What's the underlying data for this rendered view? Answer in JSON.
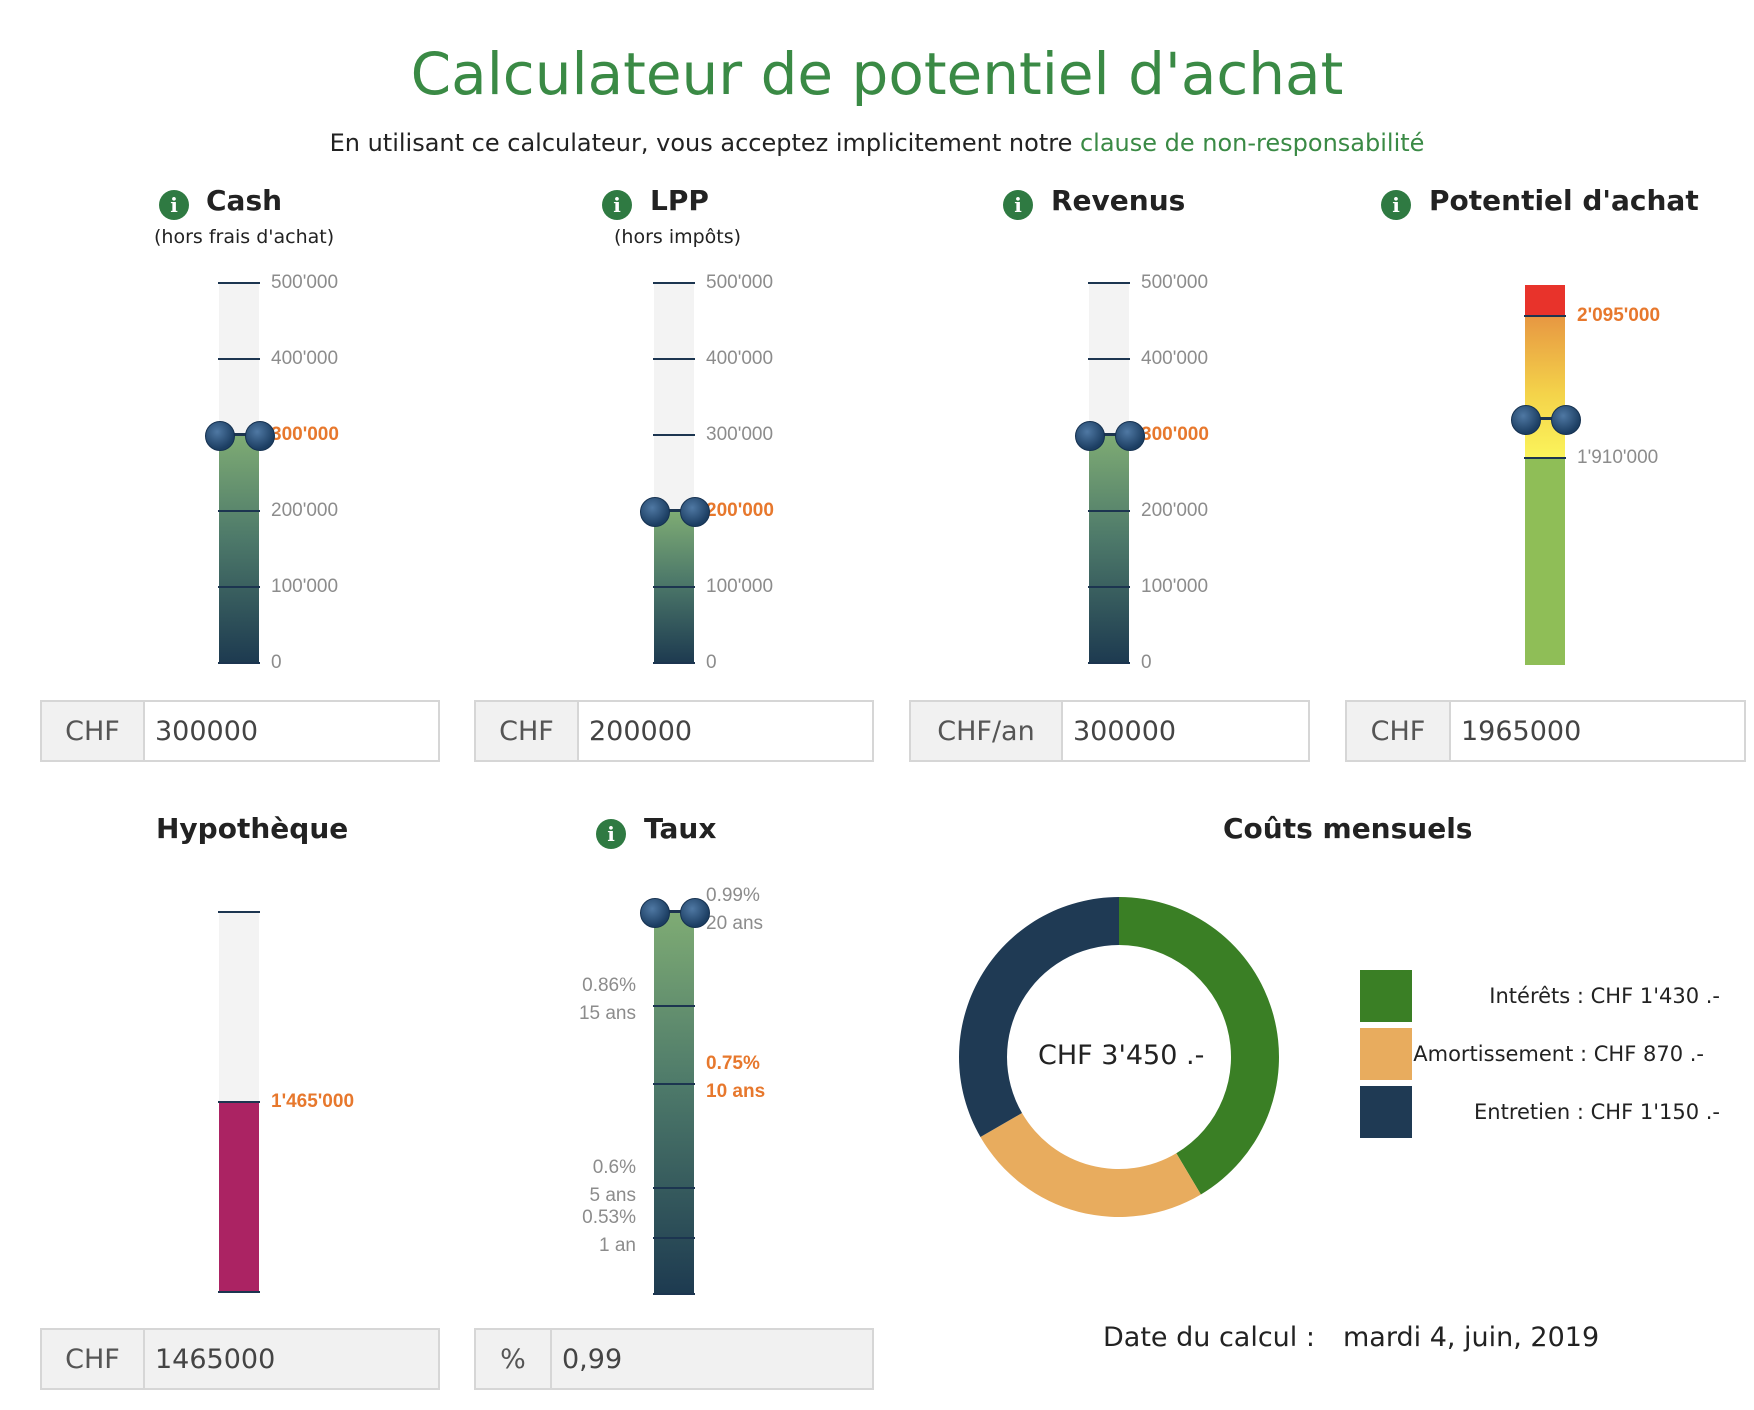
{
  "header": {
    "title": "Calculateur de potentiel d'achat",
    "disclaimer_text": "En utilisant ce calculateur, vous acceptez implicitement notre",
    "disclaimer_link": "clause de non-responsabilité"
  },
  "icons": {
    "info": "info-icon"
  },
  "cash": {
    "title": "Cash",
    "subtitle": "(hors frais d'achat)",
    "ticks": [
      "500'000",
      "400'000",
      "300'000",
      "200'000",
      "100'000",
      "0"
    ],
    "value_fraction": 0.6,
    "input_unit": "CHF",
    "input_value": "300000"
  },
  "lpp": {
    "title": "LPP",
    "subtitle": "(hors impôts)",
    "ticks": [
      "500'000",
      "400'000",
      "300'000",
      "200'000",
      "100'000",
      "0"
    ],
    "value_fraction": 0.4,
    "input_unit": "CHF",
    "input_value": "200000"
  },
  "revenus": {
    "title": "Revenus",
    "ticks": [
      "500'000",
      "400'000",
      "300'000",
      "200'000",
      "100'000",
      "0"
    ],
    "value_fraction": 0.6,
    "input_unit": "CHF/an",
    "input_value": "300000"
  },
  "potentiel": {
    "title": "Potentiel d'achat",
    "upper_label": "2'095'000",
    "lower_label": "1'910'000",
    "input_unit": "CHF",
    "input_value": "1965000"
  },
  "hypotheque": {
    "title": "Hypothèque",
    "value_label": "1'465'000",
    "input_unit": "CHF",
    "input_value": "1465000"
  },
  "taux": {
    "title": "Taux",
    "labels": {
      "t20_rate": "0.99%",
      "t20_term": "20 ans",
      "t15_rate": "0.86%",
      "t15_term": "15 ans",
      "t10_rate": "0.75%",
      "t10_term": "10 ans",
      "t5_rate": "0.6%",
      "t5_term": "5 ans",
      "t1_rate": "0.53%",
      "t1_term": "1 an"
    },
    "input_unit": "%",
    "input_value": "0,99"
  },
  "couts": {
    "title": "Coûts mensuels",
    "center_label": "CHF 3'450 .-",
    "chart_data": {
      "type": "pie",
      "title": "Coûts mensuels",
      "slices": [
        {
          "label": "Intérêts : CHF 1'430 .-",
          "value": 1430,
          "color": "#3a7f25"
        },
        {
          "label": "Amortissement : CHF 870 .-",
          "value": 870,
          "color": "#e8ac5e"
        },
        {
          "label": "Entretien : CHF 1'150 .-",
          "value": 1150,
          "color": "#1f3a54"
        }
      ],
      "total": 3450
    }
  },
  "date": {
    "label": "Date du calcul :",
    "value": "mardi 4, juin, 2019"
  },
  "colors": {
    "brand_green": "#3a8a45",
    "accent_orange": "#e7782d",
    "slider_dark": "#1c3550",
    "mortgage_bar": "#ab2363"
  }
}
